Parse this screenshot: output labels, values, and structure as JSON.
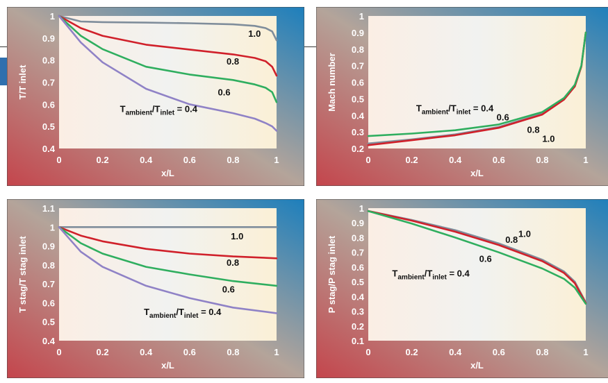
{
  "colors": {
    "accent_blue": "#2f6fae",
    "line_1_0": "#7f8d9b",
    "line_0_8": "#d0202a",
    "line_0_6": "#2fae5f",
    "line_0_4": "#8f82c6"
  },
  "chart_data": [
    {
      "type": "line",
      "ylabel": "T/T inlet",
      "xlabel": "x/L",
      "xlim": [
        0,
        1
      ],
      "ylim": [
        0.4,
        1
      ],
      "xticks": [
        "0",
        "0.2",
        "0.4",
        "0.6",
        "0.8",
        "1"
      ],
      "yticks": [
        "0.4",
        "0.5",
        "0.6",
        "0.7",
        "0.8",
        "0.9",
        "1"
      ],
      "series": [
        {
          "name": "1.0",
          "color": "#7f8d9b",
          "x": [
            0,
            0.1,
            0.2,
            0.4,
            0.6,
            0.8,
            0.9,
            0.95,
            0.98,
            1.0
          ],
          "y": [
            1.0,
            0.975,
            0.972,
            0.97,
            0.967,
            0.962,
            0.955,
            0.945,
            0.93,
            0.89
          ]
        },
        {
          "name": "0.8",
          "color": "#d0202a",
          "x": [
            0,
            0.1,
            0.2,
            0.4,
            0.6,
            0.8,
            0.9,
            0.95,
            0.98,
            1.0
          ],
          "y": [
            1.0,
            0.945,
            0.91,
            0.87,
            0.848,
            0.826,
            0.81,
            0.795,
            0.77,
            0.73
          ]
        },
        {
          "name": "0.6",
          "color": "#2fae5f",
          "x": [
            0,
            0.1,
            0.2,
            0.4,
            0.6,
            0.8,
            0.9,
            0.95,
            0.98,
            1.0
          ],
          "y": [
            1.0,
            0.91,
            0.85,
            0.77,
            0.735,
            0.71,
            0.69,
            0.675,
            0.655,
            0.61
          ]
        },
        {
          "name": "0.4",
          "color": "#8f82c6",
          "x": [
            0,
            0.1,
            0.2,
            0.4,
            0.6,
            0.8,
            0.9,
            0.95,
            0.98,
            1.0
          ],
          "y": [
            1.0,
            0.88,
            0.79,
            0.67,
            0.6,
            0.56,
            0.535,
            0.515,
            0.5,
            0.48
          ]
        }
      ],
      "annotations": [
        {
          "text": "1.0",
          "x": 0.87,
          "y": 0.905
        },
        {
          "text": "0.8",
          "x": 0.77,
          "y": 0.78
        },
        {
          "text": "0.6",
          "x": 0.73,
          "y": 0.64
        },
        {
          "text_main": "T",
          "sub1": "ambient",
          "mid": "/T",
          "sub2": "inlet",
          "tail": " = 0.4",
          "x": 0.28,
          "y": 0.565
        }
      ]
    },
    {
      "type": "line",
      "ylabel": "Mach number",
      "xlabel": "x/L",
      "xlim": [
        0,
        1
      ],
      "ylim": [
        0.2,
        1
      ],
      "xticks": [
        "0",
        "0.2",
        "0.4",
        "0.6",
        "0.8",
        "1"
      ],
      "yticks": [
        "0.2",
        "0.3",
        "0.4",
        "0.5",
        "0.6",
        "0.7",
        "0.8",
        "0.9",
        "1"
      ],
      "series": [
        {
          "name": "1.0",
          "color": "#7f8d9b",
          "x": [
            0,
            0.2,
            0.4,
            0.6,
            0.8,
            0.9,
            0.95,
            0.98,
            1.0
          ],
          "y": [
            0.23,
            0.255,
            0.285,
            0.33,
            0.41,
            0.5,
            0.58,
            0.7,
            0.9
          ]
        },
        {
          "name": "0.8",
          "color": "#d0202a",
          "x": [
            0,
            0.2,
            0.4,
            0.6,
            0.8,
            0.9,
            0.95,
            0.98,
            1.0
          ],
          "y": [
            0.22,
            0.25,
            0.28,
            0.325,
            0.405,
            0.495,
            0.575,
            0.695,
            0.9
          ]
        },
        {
          "name": "0.6",
          "color": "#2fae5f",
          "x": [
            0,
            0.2,
            0.4,
            0.6,
            0.8,
            0.9,
            0.95,
            0.98,
            1.0
          ],
          "y": [
            0.275,
            0.29,
            0.31,
            0.345,
            0.42,
            0.505,
            0.585,
            0.7,
            0.9
          ]
        }
      ],
      "annotations": [
        {
          "text_main": "T",
          "sub1": "ambient",
          "mid": "/T",
          "sub2": "inlet",
          "tail": " = 0.4",
          "x": 0.22,
          "y": 0.425
        },
        {
          "text": "0.6",
          "x": 0.59,
          "y": 0.37
        },
        {
          "text": "0.8",
          "x": 0.73,
          "y": 0.295
        },
        {
          "text": "1.0",
          "x": 0.8,
          "y": 0.24
        }
      ]
    },
    {
      "type": "line",
      "ylabel": "T stag/T stag inlet",
      "xlabel": "x/L",
      "xlim": [
        0,
        1
      ],
      "ylim": [
        0.4,
        1.1
      ],
      "xticks": [
        "0",
        "0.2",
        "0.4",
        "0.6",
        "0.8",
        "1"
      ],
      "yticks": [
        "0.4",
        "0.5",
        "0.6",
        "0.7",
        "0.8",
        "0.9",
        "1",
        "1.1"
      ],
      "series": [
        {
          "name": "1.0",
          "color": "#7f8d9b",
          "x": [
            0,
            1.0
          ],
          "y": [
            1.0,
            1.0
          ]
        },
        {
          "name": "0.8",
          "color": "#d0202a",
          "x": [
            0,
            0.1,
            0.2,
            0.4,
            0.6,
            0.8,
            1.0
          ],
          "y": [
            1.0,
            0.955,
            0.925,
            0.885,
            0.86,
            0.845,
            0.835
          ]
        },
        {
          "name": "0.6",
          "color": "#2fae5f",
          "x": [
            0,
            0.1,
            0.2,
            0.4,
            0.6,
            0.8,
            1.0
          ],
          "y": [
            1.0,
            0.915,
            0.86,
            0.79,
            0.75,
            0.715,
            0.69
          ]
        },
        {
          "name": "0.4",
          "color": "#8f82c6",
          "x": [
            0,
            0.1,
            0.2,
            0.4,
            0.6,
            0.8,
            1.0
          ],
          "y": [
            1.0,
            0.87,
            0.79,
            0.69,
            0.625,
            0.575,
            0.545
          ]
        }
      ],
      "annotations": [
        {
          "text": "1.0",
          "x": 0.79,
          "y": 0.935
        },
        {
          "text": "0.8",
          "x": 0.77,
          "y": 0.795
        },
        {
          "text": "0.6",
          "x": 0.75,
          "y": 0.655
        },
        {
          "text_main": "T",
          "sub1": "ambient",
          "mid": "/T",
          "sub2": "inlet",
          "tail": " = 0.4",
          "x": 0.39,
          "y": 0.535
        }
      ]
    },
    {
      "type": "line",
      "ylabel": "P stag/P stag inlet",
      "xlabel": "x/L",
      "xlim": [
        0,
        1
      ],
      "ylim": [
        0.1,
        1
      ],
      "xticks": [
        "0",
        "0.2",
        "0.4",
        "0.6",
        "0.8",
        "1"
      ],
      "yticks": [
        "0.1",
        "0.2",
        "0.3",
        "0.4",
        "0.5",
        "0.6",
        "0.7",
        "0.8",
        "0.9",
        "1"
      ],
      "series": [
        {
          "name": "1.0",
          "color": "#7f8d9b",
          "x": [
            0,
            0.2,
            0.4,
            0.6,
            0.8,
            0.9,
            0.95,
            1.0
          ],
          "y": [
            0.98,
            0.92,
            0.85,
            0.76,
            0.65,
            0.57,
            0.5,
            0.36
          ]
        },
        {
          "name": "0.8",
          "color": "#d0202a",
          "x": [
            0,
            0.2,
            0.4,
            0.6,
            0.8,
            0.9,
            0.95,
            1.0
          ],
          "y": [
            0.98,
            0.915,
            0.84,
            0.75,
            0.64,
            0.56,
            0.49,
            0.355
          ]
        },
        {
          "name": "0.6",
          "color": "#2fae5f",
          "x": [
            0,
            0.2,
            0.4,
            0.6,
            0.8,
            0.9,
            0.95,
            1.0
          ],
          "y": [
            0.98,
            0.895,
            0.8,
            0.7,
            0.59,
            0.52,
            0.46,
            0.35
          ]
        }
      ],
      "annotations": [
        {
          "text": "1.0",
          "x": 0.69,
          "y": 0.805
        },
        {
          "text": "0.8",
          "x": 0.63,
          "y": 0.765
        },
        {
          "text": "0.6",
          "x": 0.51,
          "y": 0.635
        },
        {
          "text_main": "T",
          "sub1": "ambient",
          "mid": "/T",
          "sub2": "inlet",
          "tail": " = 0.4",
          "x": 0.11,
          "y": 0.535
        }
      ]
    }
  ]
}
